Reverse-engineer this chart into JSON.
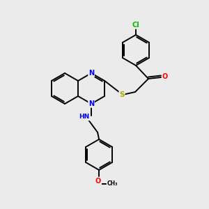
{
  "background_color": "#ebebeb",
  "bond_color": "#000000",
  "atom_colors": {
    "N": "#0000ff",
    "O": "#ff0000",
    "S": "#aaaa00",
    "Cl": "#00bb00",
    "C": "#000000",
    "H": "#444444"
  },
  "figsize": [
    3.0,
    3.0
  ],
  "dpi": 100,
  "lw": 1.4,
  "r": 22
}
